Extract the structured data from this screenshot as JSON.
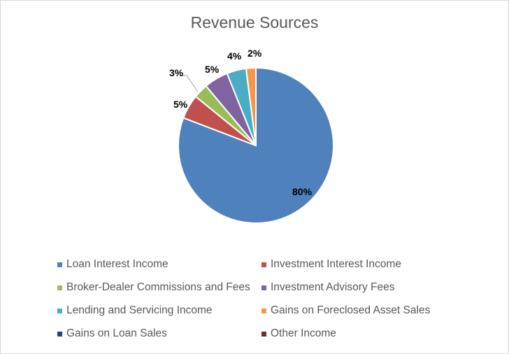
{
  "chart_data": {
    "type": "pie",
    "title": "Revenue Sources",
    "slices": [
      {
        "name": "Loan Interest Income",
        "value": 80,
        "label": "80%",
        "color": "#4f81bd"
      },
      {
        "name": "Investment Interest Income",
        "value": 5,
        "label": "5%",
        "color": "#c0504d"
      },
      {
        "name": "Broker-Dealer Commissions and Fees",
        "value": 3,
        "label": "3%",
        "color": "#9bbb59"
      },
      {
        "name": "Investment Advisory Fees",
        "value": 5,
        "label": "5%",
        "color": "#8064a2"
      },
      {
        "name": "Lending and Servicing Income",
        "value": 4,
        "label": "4%",
        "color": "#4bacc6"
      },
      {
        "name": "Gains on Foreclosed Asset Sales",
        "value": 2,
        "label": "2%",
        "color": "#f79646"
      },
      {
        "name": "Gains on Loan Sales",
        "value": 0,
        "label": "",
        "color": "#1f497d"
      },
      {
        "name": "Other Income",
        "value": 0,
        "label": "",
        "color": "#772c2a"
      }
    ],
    "legend_position": "bottom",
    "start_angle_deg": 0,
    "direction": "clockwise"
  }
}
